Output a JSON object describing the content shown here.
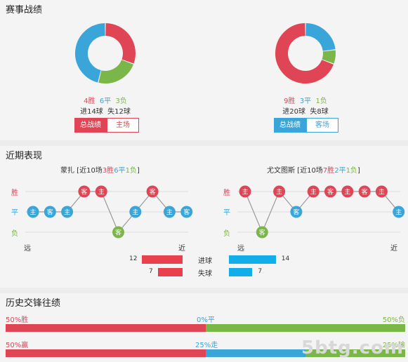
{
  "record": {
    "title": "赛事战绩",
    "home": {
      "donut": [
        {
          "value": 4,
          "color": "#e04555"
        },
        {
          "value": 3,
          "color": "#7ab648"
        },
        {
          "value": 6,
          "color": "#3aa5d8"
        }
      ],
      "wins": "4胜",
      "draws": "6平",
      "losses": "3负",
      "goals": "进14球",
      "conceded": "失12球",
      "tab_total": "总战绩",
      "tab_venue": "主场",
      "accent": "#e04555"
    },
    "away": {
      "donut": [
        {
          "value": 3,
          "color": "#3aa5d8"
        },
        {
          "value": 1,
          "color": "#7ab648"
        },
        {
          "value": 9,
          "color": "#e04555"
        }
      ],
      "wins": "9胜",
      "draws": "3平",
      "losses": "1负",
      "goals": "进20球",
      "conceded": "失8球",
      "tab_total": "总战绩",
      "tab_venue": "客场",
      "accent": "#3aa5d8"
    }
  },
  "recent": {
    "title": "近期表现",
    "row_labels": {
      "win": "胜",
      "draw": "平",
      "loss": "负"
    },
    "far": "远",
    "near": "近",
    "home": {
      "team": "蒙扎",
      "summary_prefix": " [近10场",
      "w": "3胜",
      "d": "6平",
      "l": "1负",
      "summary_suffix": "]",
      "matches": [
        {
          "venue": "主",
          "result": "draw"
        },
        {
          "venue": "客",
          "result": "draw"
        },
        {
          "venue": "主",
          "result": "draw"
        },
        {
          "venue": "客",
          "result": "win"
        },
        {
          "venue": "主",
          "result": "win"
        },
        {
          "venue": "客",
          "result": "loss"
        },
        {
          "venue": "主",
          "result": "draw"
        },
        {
          "venue": "客",
          "result": "win"
        },
        {
          "venue": "主",
          "result": "draw"
        },
        {
          "venue": "客",
          "result": "draw"
        }
      ]
    },
    "away": {
      "team": "尤文图斯",
      "summary_prefix": " [近10场",
      "w": "7胜",
      "d": "2平",
      "l": "1负",
      "summary_suffix": "]",
      "matches": [
        {
          "venue": "主",
          "result": "win"
        },
        {
          "venue": "客",
          "result": "loss"
        },
        {
          "venue": "主",
          "result": "win"
        },
        {
          "venue": "客",
          "result": "draw"
        },
        {
          "venue": "主",
          "result": "win"
        },
        {
          "venue": "客",
          "result": "win"
        },
        {
          "venue": "主",
          "result": "win"
        },
        {
          "venue": "客",
          "result": "win"
        },
        {
          "venue": "主",
          "result": "win"
        },
        {
          "venue": "主",
          "result": "draw"
        }
      ]
    },
    "goals": {
      "label_for": "进球",
      "label_against": "失球",
      "home_for": 12,
      "home_against": 7,
      "away_for": 14,
      "away_against": 7
    }
  },
  "history": {
    "title": "历史交锋往绩",
    "row1": {
      "win_label": "50%胜",
      "draw_label": "0%平",
      "loss_label": "50%负",
      "win": 50,
      "draw": 0,
      "loss": 50
    },
    "row2": {
      "win_label": "50%赢",
      "draw_label": "25%走",
      "loss_label": "25%输",
      "win": 50,
      "draw": 25,
      "loss": 25
    }
  },
  "colors": {
    "win": "#e04555",
    "draw": "#3aa5d8",
    "loss": "#7ab648"
  },
  "watermark": "5btg.com"
}
